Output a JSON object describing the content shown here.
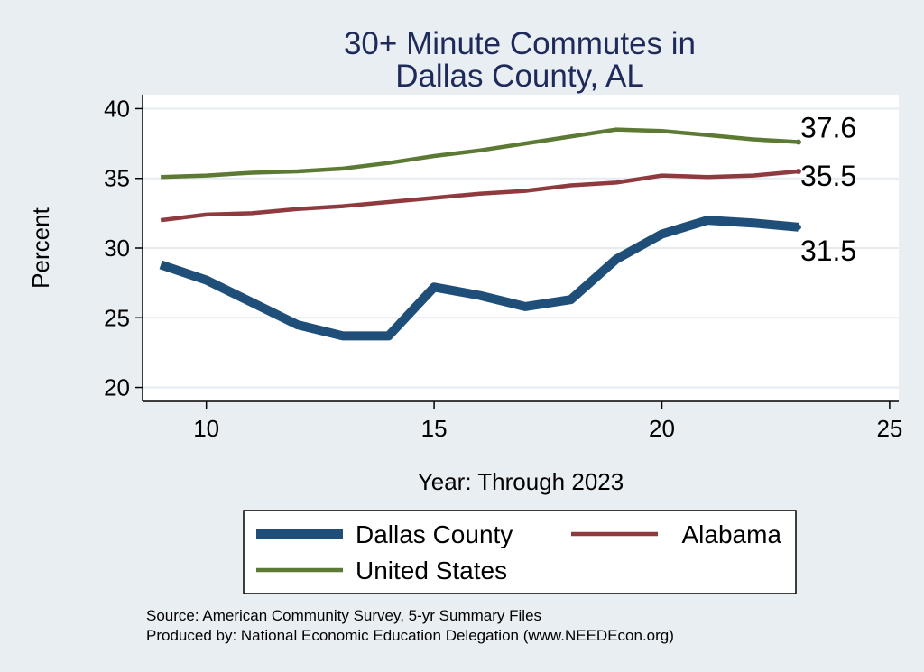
{
  "chart_data": {
    "type": "line",
    "title": [
      "30+ Minute Commutes in",
      "Dallas County, AL"
    ],
    "xlabel": "Year: Through 2023",
    "ylabel": "Percent",
    "xlim": [
      8.6,
      25.2
    ],
    "ylim": [
      19,
      41
    ],
    "x_ticks": [
      10,
      15,
      20,
      25
    ],
    "y_ticks": [
      20,
      25,
      30,
      35,
      40
    ],
    "grid": true,
    "x": [
      9,
      10,
      11,
      12,
      13,
      14,
      15,
      16,
      17,
      18,
      19,
      20,
      21,
      22,
      23
    ],
    "series": [
      {
        "name": "Dallas County",
        "color": "#1f4e79",
        "values": [
          28.8,
          27.7,
          26.1,
          24.5,
          23.7,
          23.7,
          27.2,
          26.6,
          25.8,
          26.3,
          29.2,
          31.0,
          32.0,
          31.8,
          31.5
        ],
        "end_label": "31.5"
      },
      {
        "name": "Alabama",
        "color": "#8f3a3f",
        "values": [
          32.0,
          32.4,
          32.5,
          32.8,
          33.0,
          33.3,
          33.6,
          33.9,
          34.1,
          34.5,
          34.7,
          35.2,
          35.1,
          35.2,
          35.5
        ],
        "end_label": "35.5"
      },
      {
        "name": "United States",
        "color": "#5c7a34",
        "values": [
          35.1,
          35.2,
          35.4,
          35.5,
          35.7,
          36.1,
          36.6,
          37.0,
          37.5,
          38.0,
          38.5,
          38.4,
          38.1,
          37.8,
          37.6
        ],
        "end_label": "37.6"
      }
    ],
    "legend": {
      "placement": "bottom",
      "entries": [
        "Dallas County",
        "Alabama",
        "United States"
      ]
    },
    "source_lines": [
      "Source: American Community Survey, 5-yr Summary Files",
      "Produced by: National Economic Education Delegation (www.NEEDEcon.org)"
    ]
  }
}
